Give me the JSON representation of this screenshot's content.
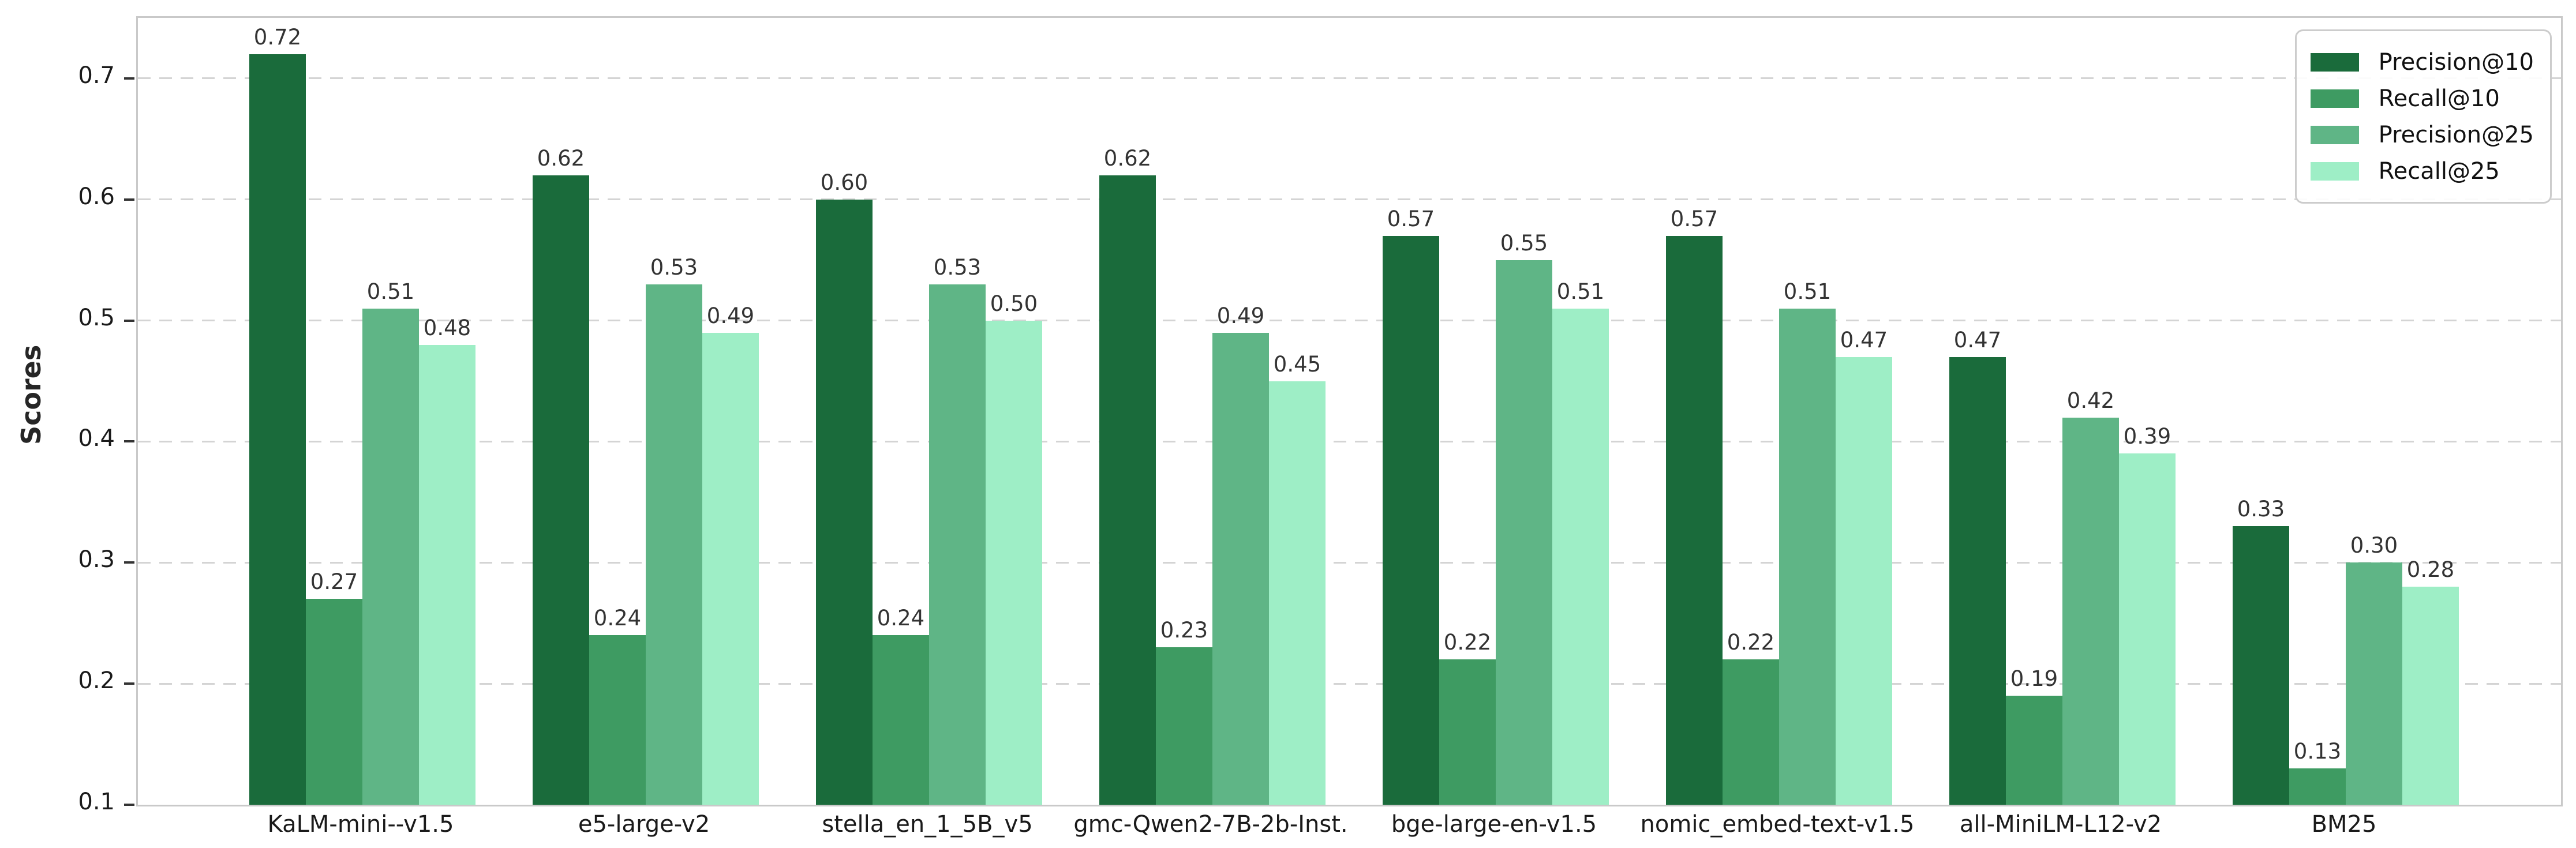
{
  "chart_data": {
    "type": "bar",
    "title": "",
    "xlabel": "",
    "ylabel": "Scores",
    "categories": [
      "KaLM-mini--v1.5",
      "e5-large-v2",
      "stella_en_1_5B_v5",
      "gmc-Qwen2-7B-2b-Inst.",
      "bge-large-en-v1.5",
      "nomic_embed-text-v1.5",
      "all-MiniLM-L12-v2",
      "BM25"
    ],
    "series": [
      {
        "name": "Precision@10",
        "color": "#1a6b3b",
        "values": [
          0.72,
          0.62,
          0.6,
          0.62,
          0.57,
          0.57,
          0.47,
          0.33
        ]
      },
      {
        "name": "Recall@10",
        "color": "#3e9b62",
        "values": [
          0.27,
          0.24,
          0.24,
          0.23,
          0.22,
          0.22,
          0.19,
          0.13
        ]
      },
      {
        "name": "Precision@25",
        "color": "#5fb586",
        "values": [
          0.51,
          0.53,
          0.53,
          0.49,
          0.55,
          0.51,
          0.42,
          0.3
        ]
      },
      {
        "name": "Recall@25",
        "color": "#9eeec6",
        "values": [
          0.48,
          0.49,
          0.5,
          0.45,
          0.51,
          0.47,
          0.39,
          0.28
        ]
      }
    ],
    "ylim": [
      0.1,
      0.75
    ],
    "yticks": [
      0.1,
      0.2,
      0.3,
      0.4,
      0.5,
      0.6,
      0.7
    ],
    "grid": true,
    "grid_style": "dashed",
    "legend_position": "upper right",
    "value_labels": true,
    "value_label_format": "0.00",
    "colors": {
      "spine": "#c9c9c9",
      "gridline": "#d4d4d4",
      "tick_text": "#1a1a1a",
      "value_label_text": "#333333",
      "background": "#ffffff"
    }
  }
}
